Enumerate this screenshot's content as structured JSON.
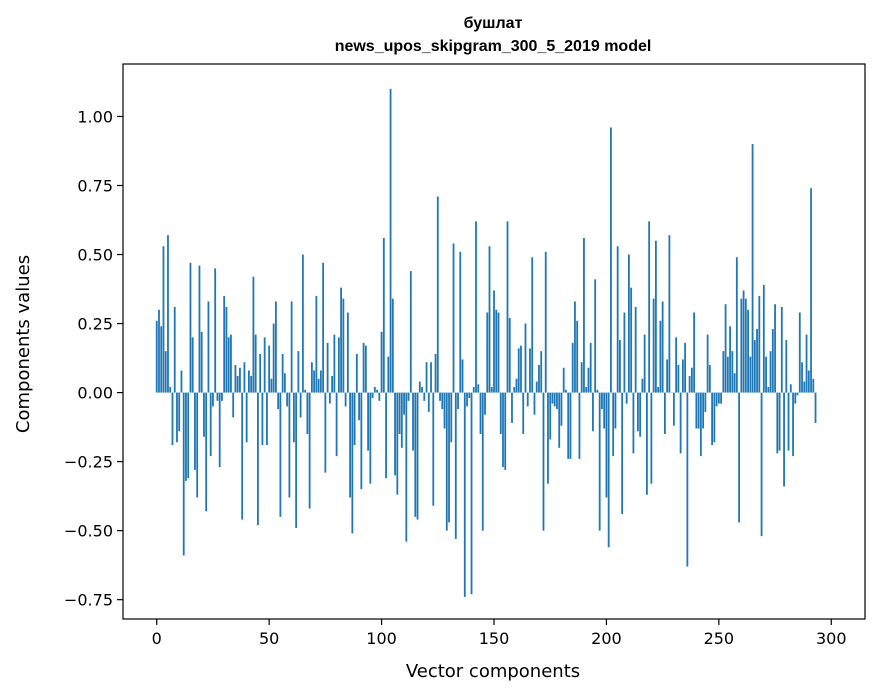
{
  "chart_data": {
    "type": "bar",
    "title": "бушлат",
    "subtitle": "news_upos_skipgram_300_5_2019 model",
    "xlabel": "Vector components",
    "ylabel": "Components values",
    "xlim": [
      -15,
      315
    ],
    "ylim": [
      -0.82,
      1.19
    ],
    "xticks": [
      0,
      50,
      100,
      150,
      200,
      250,
      300
    ],
    "xtick_labels": [
      "0",
      "50",
      "100",
      "150",
      "200",
      "250",
      "300"
    ],
    "yticks": [
      -0.75,
      -0.5,
      -0.25,
      0.0,
      0.25,
      0.5,
      0.75,
      1.0
    ],
    "ytick_labels": [
      "−0.75",
      "−0.50",
      "−0.25",
      "0.00",
      "0.25",
      "0.50",
      "0.75",
      "1.00"
    ],
    "grid": false,
    "bar_color": "#1f77b4",
    "values": [
      0.26,
      0.3,
      0.24,
      0.53,
      0.15,
      0.57,
      0.02,
      -0.19,
      0.31,
      -0.18,
      -0.14,
      0.08,
      -0.59,
      -0.32,
      -0.31,
      0.47,
      0.2,
      -0.28,
      -0.38,
      0.46,
      0.22,
      -0.16,
      -0.43,
      0.33,
      -0.23,
      -0.05,
      0.45,
      -0.03,
      -0.27,
      -0.03,
      0.35,
      0.31,
      0.2,
      0.21,
      -0.09,
      0.1,
      0.06,
      0.09,
      -0.46,
      0.11,
      -0.18,
      0.08,
      0.06,
      0.42,
      0.21,
      -0.48,
      0.14,
      -0.19,
      0.2,
      -0.19,
      0.17,
      0.05,
      0.25,
      0.33,
      -0.06,
      -0.45,
      0.14,
      0.07,
      -0.05,
      -0.38,
      0.33,
      -0.18,
      -0.49,
      0.15,
      -0.09,
      0.5,
      0.01,
      -0.15,
      -0.42,
      0.11,
      0.08,
      0.35,
      0.05,
      0.08,
      0.47,
      -0.29,
      0.18,
      -0.04,
      0.06,
      0.21,
      -0.23,
      0.2,
      0.38,
      0.34,
      -0.05,
      0.29,
      -0.38,
      -0.51,
      -0.19,
      0.14,
      -0.1,
      -0.35,
      0.18,
      0.17,
      -0.21,
      -0.33,
      -0.02,
      0.02,
      0.01,
      -0.03,
      0.22,
      0.56,
      -0.31,
      0.13,
      1.1,
      0.34,
      -0.3,
      -0.37,
      -0.15,
      -0.2,
      -0.08,
      -0.54,
      -0.03,
      0.44,
      -0.21,
      -0.45,
      -0.46,
      0.04,
      0.02,
      -0.03,
      0.11,
      -0.07,
      0.11,
      -0.41,
      0.14,
      0.71,
      -0.03,
      -0.06,
      -0.13,
      -0.5,
      -0.47,
      -0.18,
      0.54,
      -0.53,
      -0.06,
      0.51,
      0.12,
      -0.74,
      -0.05,
      -0.02,
      -0.73,
      0.02,
      0.62,
      0.03,
      -0.15,
      -0.5,
      -0.08,
      0.29,
      0.53,
      0.02,
      0.37,
      0.3,
      0.29,
      -0.15,
      -0.27,
      -0.28,
      0.62,
      0.27,
      -0.11,
      0.02,
      0.05,
      0.16,
      0.17,
      -0.15,
      0.25,
      -0.05,
      0.16,
      0.49,
      -0.08,
      0.04,
      0.1,
      0.15,
      -0.5,
      0.51,
      -0.33,
      -0.17,
      -0.04,
      -0.05,
      -0.06,
      -0.2,
      -0.12,
      0.09,
      0.01,
      -0.24,
      -0.24,
      0.18,
      0.33,
      0.26,
      -0.24,
      0.11,
      0.56,
      0.02,
      0.09,
      0.18,
      -0.14,
      0.41,
      0.01,
      -0.5,
      -0.06,
      -0.13,
      -0.38,
      -0.56,
      0.96,
      -0.23,
      -0.13,
      0.53,
      0.19,
      -0.44,
      0.29,
      -0.04,
      0.5,
      0.38,
      -0.22,
      0.31,
      -0.14,
      -0.16,
      0.05,
      0.21,
      -0.37,
      0.62,
      -0.33,
      0.34,
      0.55,
      0.02,
      0.26,
      0.33,
      -0.15,
      0.12,
      0.57,
      0.0,
      -0.12,
      0.2,
      0.1,
      -0.22,
      0.12,
      0.18,
      -0.63,
      0.06,
      0.09,
      0.29,
      -0.13,
      -0.13,
      -0.23,
      -0.13,
      -0.07,
      0.21,
      0.1,
      -0.19,
      -0.18,
      -0.05,
      -0.04,
      -0.04,
      0.15,
      0.32,
      0.13,
      0.24,
      0.15,
      0.07,
      0.49,
      -0.47,
      0.34,
      0.37,
      0.34,
      0.3,
      0.13,
      0.9,
      0.19,
      0.23,
      0.35,
      -0.52,
      0.39,
      0.13,
      0.02,
      0.15,
      0.23,
      0.32,
      -0.22,
      -0.21,
      0.31,
      -0.34,
      0.19,
      -0.21,
      0.03,
      -0.23,
      -0.04,
      -0.01,
      0.29,
      0.11,
      0.04,
      0.21,
      0.08,
      0.74,
      0.05,
      -0.11
    ]
  }
}
